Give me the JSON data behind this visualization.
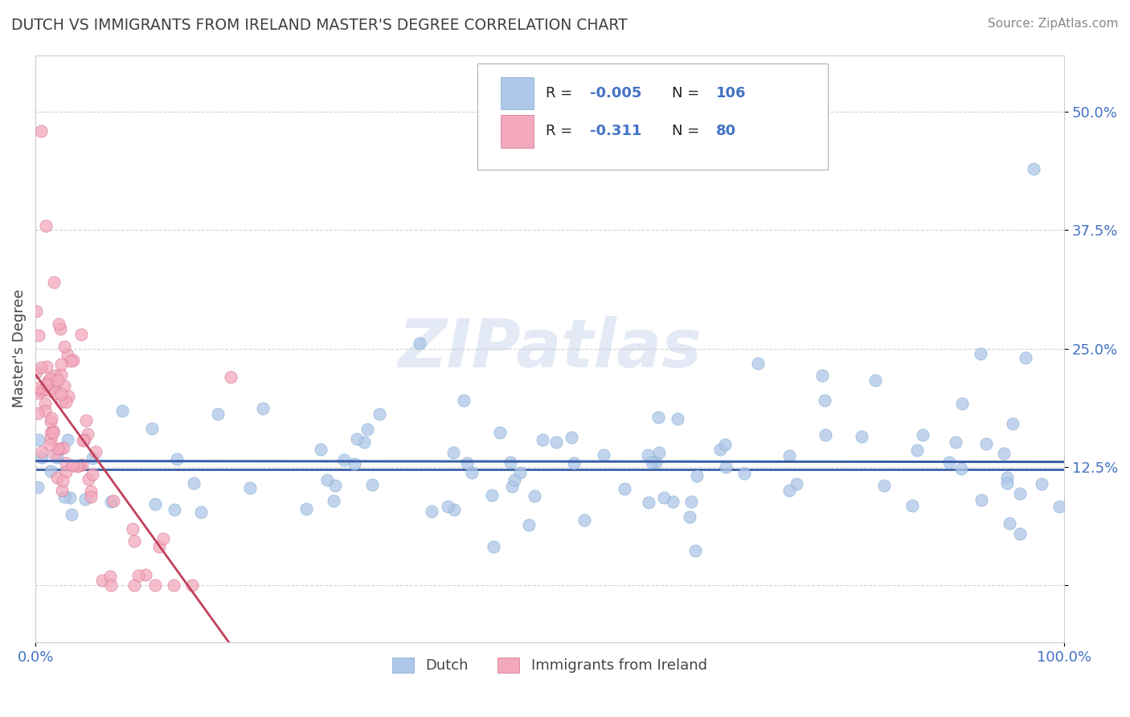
{
  "title": "DUTCH VS IMMIGRANTS FROM IRELAND MASTER'S DEGREE CORRELATION CHART",
  "source": "Source: ZipAtlas.com",
  "ylabel": "Master's Degree",
  "watermark": "ZIPatlas",
  "background_color": "#ffffff",
  "scatter_color_dutch": "#aec6e8",
  "scatter_color_ireland": "#f4a8bc",
  "trendline_color_dutch": "#3a5fa8",
  "trendline_color_ireland": "#c0405a",
  "grid_color": "#c8c8c8",
  "label_color_blue": "#4472c4",
  "title_color": "#404040",
  "xmin": 0.0,
  "xmax": 1.0,
  "ymin": -0.06,
  "ymax": 0.56,
  "hline_y": 0.122,
  "seed_dutch": 12,
  "seed_ireland": 7,
  "n_dutch": 106,
  "n_ireland": 80
}
